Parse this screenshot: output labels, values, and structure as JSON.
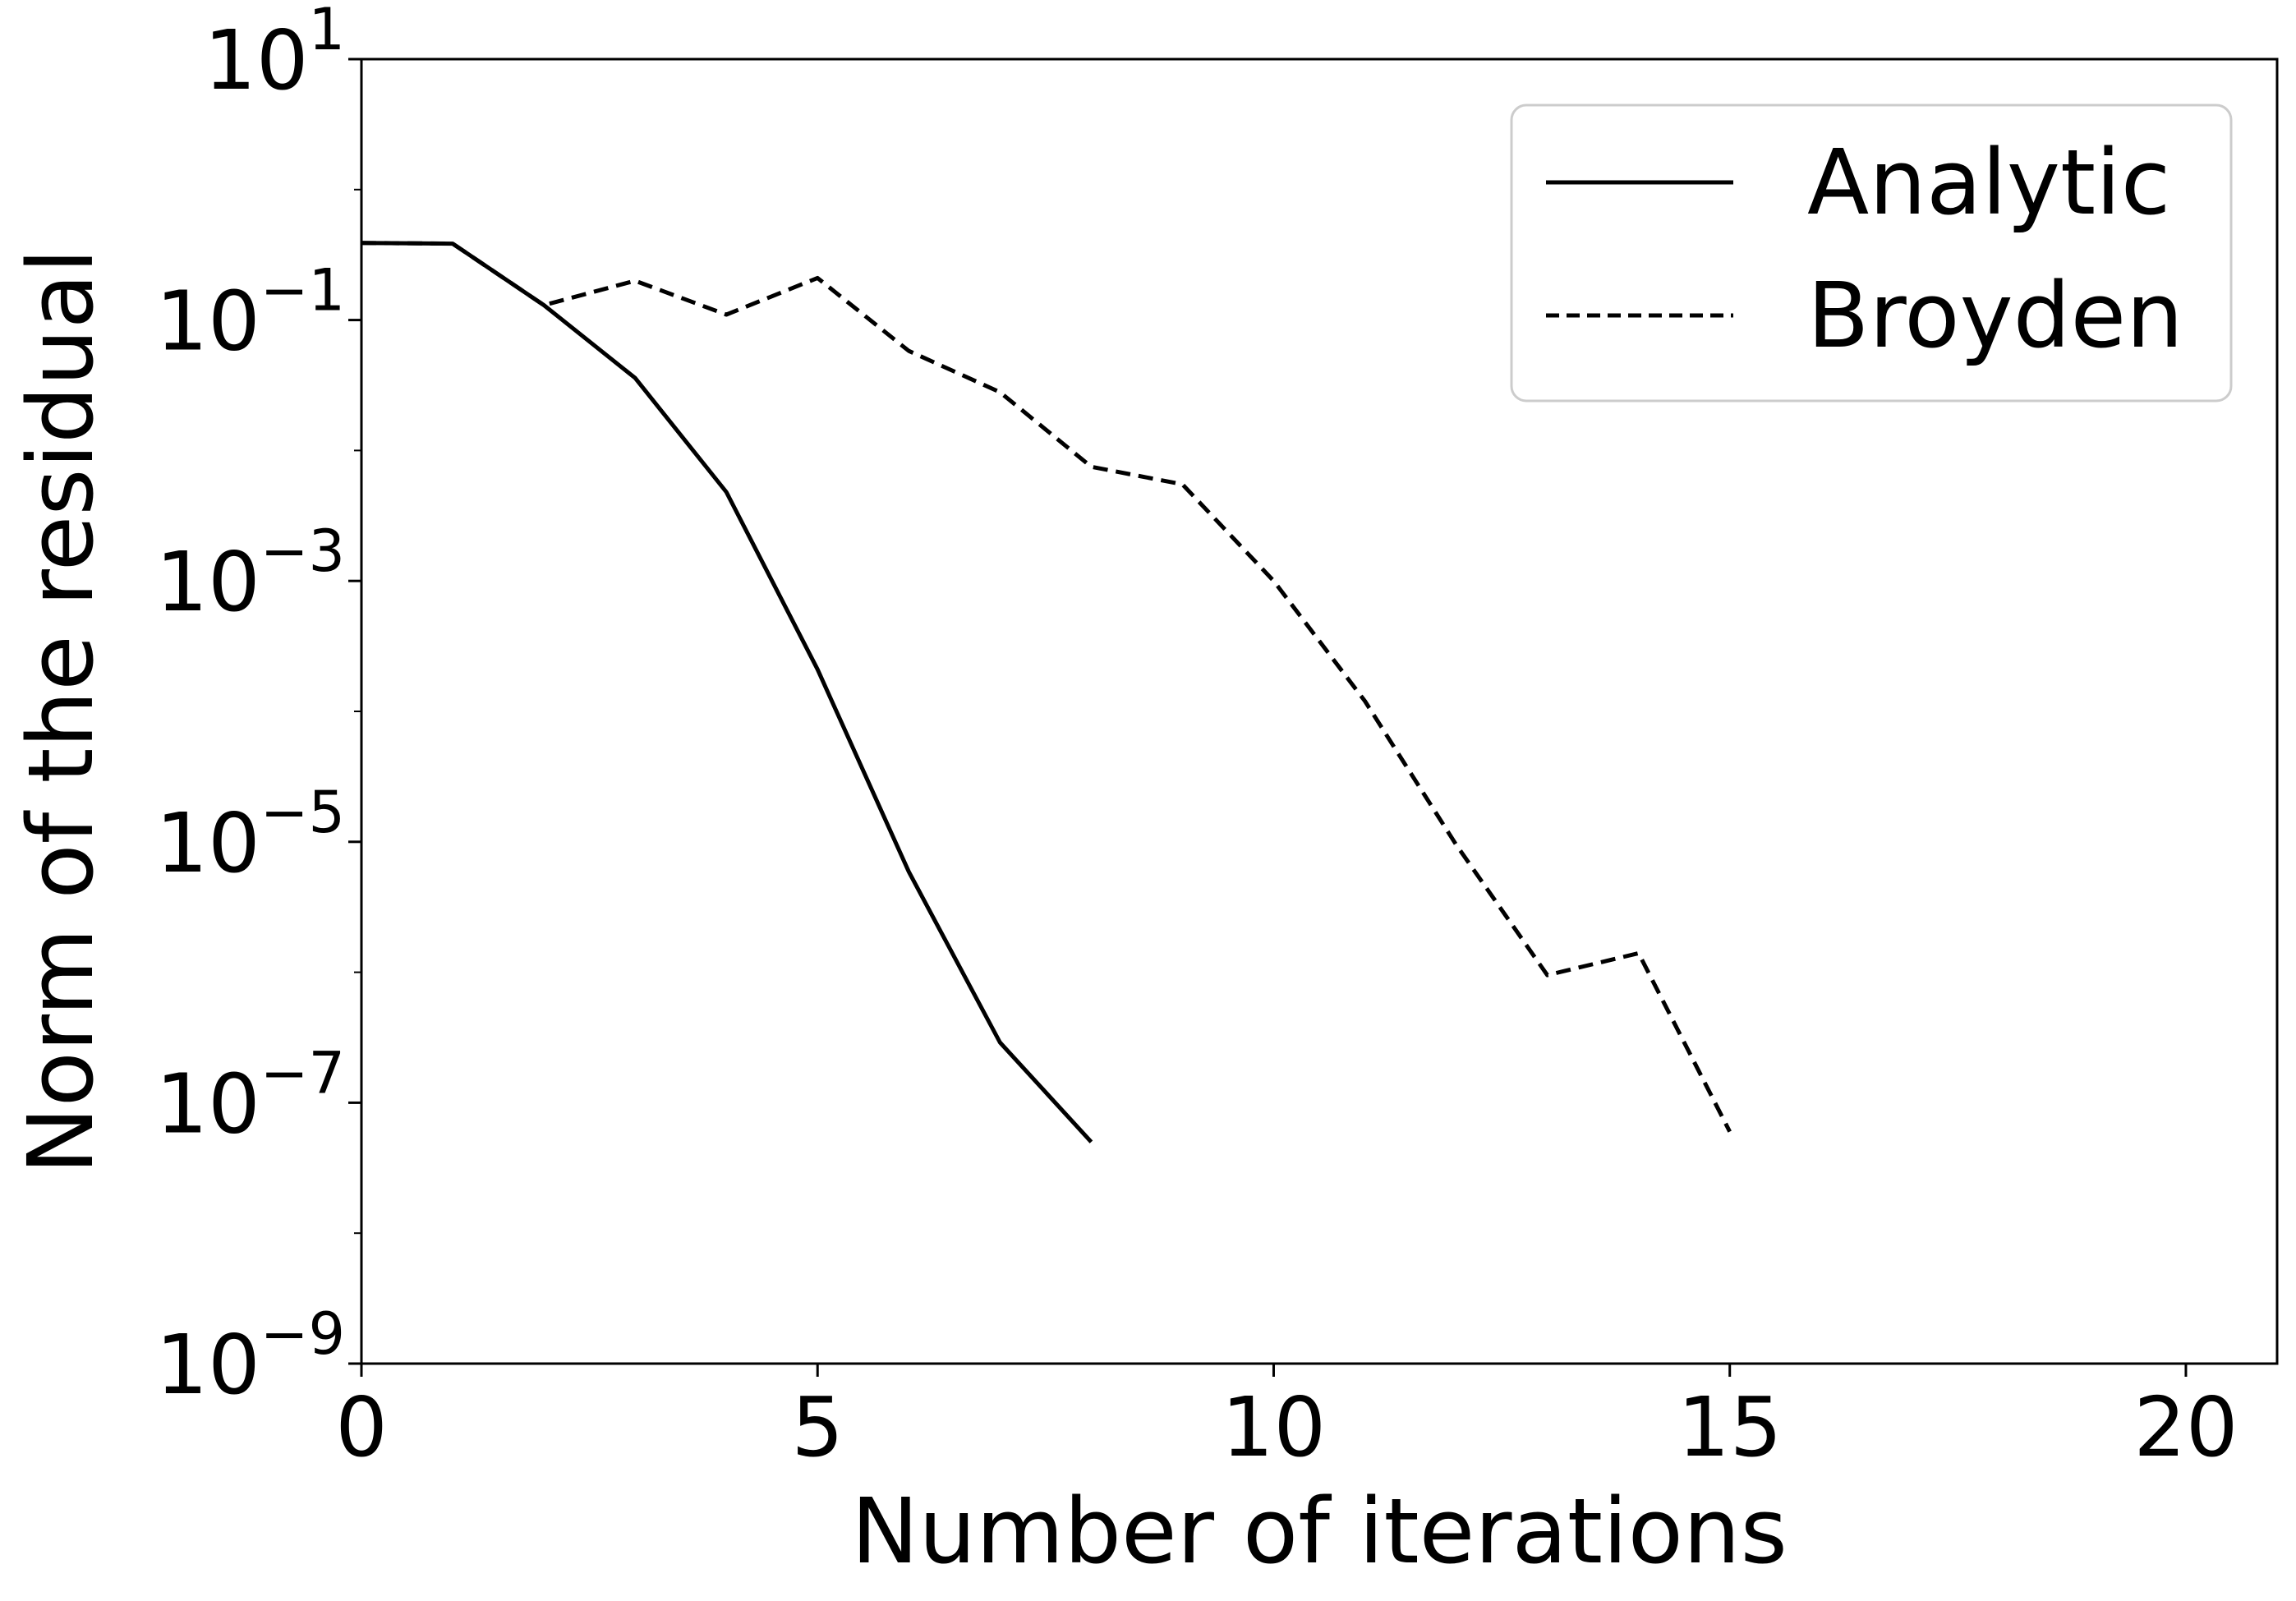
{
  "chart_data": {
    "type": "line",
    "title": "",
    "xlabel": "Number of iterations",
    "ylabel": "Norm of the residual",
    "xlim": [
      0,
      21
    ],
    "ylim": [
      1e-09,
      10
    ],
    "yscale": "log",
    "grid": false,
    "legend_position": "top-right",
    "x_ticks": [
      0,
      5,
      10,
      15,
      20
    ],
    "y_ticks": [
      {
        "value": 1e-09,
        "base": "10",
        "exp": "−9"
      },
      {
        "value": 1e-07,
        "base": "10",
        "exp": "−7"
      },
      {
        "value": 1e-05,
        "base": "10",
        "exp": "−5"
      },
      {
        "value": 0.001,
        "base": "10",
        "exp": "−3"
      },
      {
        "value": 0.1,
        "base": "10",
        "exp": "−1"
      },
      {
        "value": 10,
        "base": "10",
        "exp": "1"
      }
    ],
    "series": [
      {
        "name": "Analytic",
        "dash": "solid",
        "color": "#000000",
        "x": [
          0,
          1,
          2,
          3,
          4,
          5,
          6,
          7,
          8
        ],
        "y": [
          0.39,
          0.385,
          0.13,
          0.036,
          0.0048,
          0.00021,
          5.9e-06,
          2.9e-07,
          5e-08
        ]
      },
      {
        "name": "Broyden",
        "dash": "dashed",
        "color": "#000000",
        "x": [
          0,
          1,
          2,
          3,
          4,
          5,
          6,
          7,
          8,
          9,
          10,
          11,
          12,
          13,
          14,
          15
        ],
        "y": [
          0.39,
          0.385,
          0.13,
          0.2,
          0.11,
          0.21,
          0.058,
          0.028,
          0.0075,
          0.0055,
          0.001,
          0.00012,
          9.5e-06,
          9.5e-07,
          1.4e-06,
          6e-08
        ]
      }
    ]
  }
}
